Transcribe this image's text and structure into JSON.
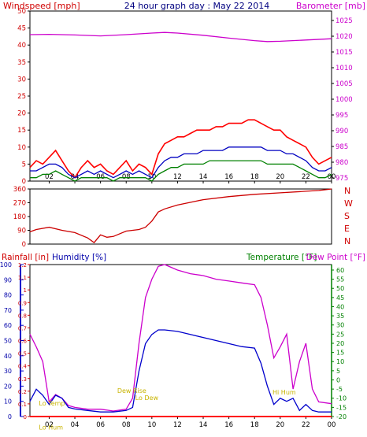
{
  "header": {
    "title": "24 hour graph day : May 22 2014",
    "left_label": "Windspeed [mph]",
    "right_label": "Barometer [mb]"
  },
  "wind_panel": {
    "left_ticks": [
      0,
      5,
      10,
      15,
      20,
      25,
      30,
      35,
      40,
      45,
      50
    ],
    "right_ticks": [
      975,
      980,
      985,
      990,
      995,
      1000,
      1005,
      1010,
      1015,
      1020,
      1025
    ],
    "x_ticks": [
      "02",
      "04",
      "06",
      "08",
      "10",
      "12",
      "14",
      "16",
      "18",
      "20",
      "22",
      "00"
    ]
  },
  "dir_panel": {
    "left_ticks": [
      0,
      90,
      180,
      270,
      360
    ],
    "right_labels": [
      "N",
      "W",
      "S",
      "E",
      "N"
    ]
  },
  "bottom_panel": {
    "label_rain": "Rainfall [in]",
    "label_humidity": "Humidity [%]",
    "label_temp": "Temperature [°F]",
    "label_dew": "Dew Point [°F]",
    "humidity_ticks": [
      0,
      10,
      20,
      30,
      40,
      50,
      60,
      70,
      80,
      90,
      100
    ],
    "rain_ticks": [
      "0",
      "0.1",
      "0.2",
      "0.3",
      "0.4",
      "0.5",
      "0.6",
      "0.7",
      "0.8",
      "0.9",
      "1",
      "1.1",
      "1.2"
    ],
    "temp_ticks": [
      -20,
      -15,
      -10,
      -5,
      0,
      5,
      10,
      15,
      20,
      25,
      30,
      35,
      40,
      45,
      50,
      55,
      60
    ],
    "x_ticks": [
      "02",
      "04",
      "06",
      "08",
      "10",
      "12",
      "14",
      "16",
      "18",
      "20",
      "22",
      "00"
    ],
    "annotations": [
      {
        "text": "Lo Temp",
        "hour": 1.2,
        "temp": -14
      },
      {
        "text": "Lo Hum",
        "hour": 1.2,
        "temp": -27
      },
      {
        "text": "Dew Rise",
        "hour": 7.3,
        "temp": -7
      },
      {
        "text": "Lo Dew",
        "hour": 8.7,
        "temp": -11
      },
      {
        "text": "Hi Hum",
        "hour": 19.4,
        "temp": -8
      }
    ]
  },
  "chart_data": [
    {
      "type": "line",
      "name": "wind",
      "x_unit": "hour",
      "xlim": [
        0.5,
        24
      ],
      "ylim": [
        0,
        50
      ],
      "y2lim": [
        974,
        1028
      ],
      "series": [
        {
          "name": "Windspeed gust",
          "color": "#ff0000",
          "x": [
            0.5,
            1,
            1.5,
            2,
            2.5,
            3,
            3.5,
            4,
            4.5,
            5,
            5.5,
            6,
            6.5,
            7,
            7.5,
            8,
            8.5,
            9,
            9.5,
            10,
            10.5,
            11,
            11.5,
            12,
            12.5,
            13,
            13.5,
            14,
            14.5,
            15,
            15.5,
            16,
            16.5,
            17,
            17.5,
            18,
            18.5,
            19,
            19.5,
            20,
            20.5,
            21,
            21.5,
            22,
            22.5,
            23,
            23.5,
            24
          ],
          "values": [
            4,
            6,
            5,
            7,
            9,
            6,
            3,
            1,
            4,
            6,
            4,
            5,
            3,
            2,
            4,
            6,
            3,
            5,
            4,
            2,
            8,
            11,
            12,
            13,
            13,
            14,
            15,
            15,
            15,
            16,
            16,
            17,
            17,
            17,
            18,
            18,
            17,
            16,
            15,
            15,
            13,
            12,
            11,
            10,
            7,
            5,
            6,
            7
          ]
        },
        {
          "name": "Windspeed avg",
          "color": "#0000c0",
          "x": [
            0.5,
            1,
            1.5,
            2,
            2.5,
            3,
            3.5,
            4,
            4.5,
            5,
            5.5,
            6,
            6.5,
            7,
            7.5,
            8,
            8.5,
            9,
            9.5,
            10,
            10.5,
            11,
            11.5,
            12,
            12.5,
            13,
            13.5,
            14,
            14.5,
            15,
            15.5,
            16,
            16.5,
            17,
            17.5,
            18,
            18.5,
            19,
            19.5,
            20,
            20.5,
            21,
            21.5,
            22,
            22.5,
            23,
            23.5,
            24
          ],
          "values": [
            3,
            3,
            4,
            5,
            5,
            4,
            2,
            1,
            2,
            3,
            2,
            3,
            2,
            1,
            2,
            3,
            2,
            3,
            2,
            1,
            4,
            6,
            7,
            7,
            8,
            8,
            8,
            9,
            9,
            9,
            9,
            10,
            10,
            10,
            10,
            10,
            10,
            9,
            9,
            9,
            8,
            8,
            7,
            6,
            4,
            3,
            3,
            4
          ]
        },
        {
          "name": "Windspeed min",
          "color": "#008000",
          "x": [
            0.5,
            1,
            1.5,
            2,
            2.5,
            3,
            3.5,
            4,
            4.5,
            5,
            5.5,
            6,
            6.5,
            7,
            7.5,
            8,
            8.5,
            9,
            9.5,
            10,
            10.5,
            11,
            11.5,
            12,
            12.5,
            13,
            13.5,
            14,
            14.5,
            15,
            15.5,
            16,
            16.5,
            17,
            17.5,
            18,
            18.5,
            19,
            19.5,
            20,
            20.5,
            21,
            21.5,
            22,
            22.5,
            23,
            23.5,
            24
          ],
          "values": [
            1,
            1,
            2,
            2,
            3,
            2,
            1,
            0,
            1,
            1,
            1,
            1,
            1,
            0,
            1,
            1,
            1,
            1,
            1,
            0,
            2,
            3,
            4,
            4,
            5,
            5,
            5,
            5,
            6,
            6,
            6,
            6,
            6,
            6,
            6,
            6,
            6,
            5,
            5,
            5,
            5,
            5,
            4,
            3,
            2,
            1,
            1,
            2
          ]
        },
        {
          "name": "Barometer",
          "color": "#cc00cc",
          "axis": "right",
          "x": [
            0.5,
            2,
            4,
            6,
            8,
            10,
            11,
            12,
            14,
            16,
            18,
            19,
            20,
            22,
            24
          ],
          "values": [
            1020.5,
            1020.6,
            1020.4,
            1020.1,
            1020.5,
            1021,
            1021.2,
            1021,
            1020.3,
            1019.4,
            1018.6,
            1018.3,
            1018.4,
            1018.8,
            1019.2
          ]
        }
      ]
    },
    {
      "type": "line",
      "name": "wind direction",
      "x_unit": "hour",
      "xlim": [
        0.5,
        24
      ],
      "ylim": [
        0,
        360
      ],
      "series": [
        {
          "name": "Wind direction",
          "color": "#cc0000",
          "x": [
            0.5,
            1,
            2,
            3,
            4,
            5,
            5.5,
            6,
            6.5,
            7,
            8,
            9,
            9.5,
            10,
            10.5,
            11,
            12,
            14,
            16,
            18,
            20,
            22,
            23,
            23.5,
            24
          ],
          "values": [
            80,
            95,
            110,
            90,
            75,
            40,
            10,
            60,
            45,
            50,
            85,
            95,
            110,
            150,
            210,
            230,
            255,
            290,
            310,
            325,
            335,
            345,
            350,
            355,
            360
          ]
        }
      ]
    },
    {
      "type": "line",
      "name": "humidity temperature",
      "x_unit": "hour",
      "xlim": [
        0.5,
        24
      ],
      "ylim": [
        0,
        100
      ],
      "y2lim": [
        -20,
        63
      ],
      "series": [
        {
          "name": "Temperature",
          "color": "#cc00cc",
          "axis": "right",
          "x": [
            0.5,
            1,
            1.5,
            2,
            2.5,
            3,
            3.5,
            4,
            5,
            6,
            7,
            8,
            8.5,
            9,
            9.5,
            10,
            10.5,
            11,
            12,
            13,
            14,
            15,
            16,
            17,
            18,
            18.5,
            19,
            19.5,
            20,
            20.5,
            21,
            21.5,
            22,
            22.5,
            23,
            24
          ],
          "values": [
            25,
            18,
            10,
            -12,
            -8,
            -10,
            -14,
            -15,
            -16,
            -16,
            -17,
            -16,
            -10,
            20,
            45,
            55,
            62,
            63,
            60,
            58,
            57,
            55,
            54,
            53,
            52,
            45,
            30,
            12,
            18,
            25,
            -5,
            10,
            20,
            -5,
            -12,
            -13
          ]
        },
        {
          "name": "Humidity",
          "color": "#0000cc",
          "x": [
            0.5,
            1,
            1.5,
            2,
            2.5,
            3,
            3.5,
            4,
            5,
            6,
            7,
            8,
            8.5,
            9,
            9.5,
            10,
            10.5,
            11,
            12,
            13,
            14,
            15,
            16,
            17,
            18,
            18.5,
            19,
            19.5,
            20,
            20.5,
            21,
            21.5,
            22,
            22.5,
            23,
            24
          ],
          "values": [
            10,
            18,
            14,
            8,
            14,
            12,
            6,
            5,
            4,
            3,
            3,
            4,
            6,
            30,
            48,
            54,
            57,
            57,
            56,
            54,
            52,
            50,
            48,
            46,
            45,
            35,
            20,
            8,
            12,
            10,
            12,
            4,
            8,
            4,
            3,
            3
          ]
        },
        {
          "name": "Rainfall",
          "color": "#ff0000",
          "axis": "rain",
          "x": [
            0.5,
            24
          ],
          "values": [
            0,
            0
          ]
        }
      ]
    }
  ]
}
